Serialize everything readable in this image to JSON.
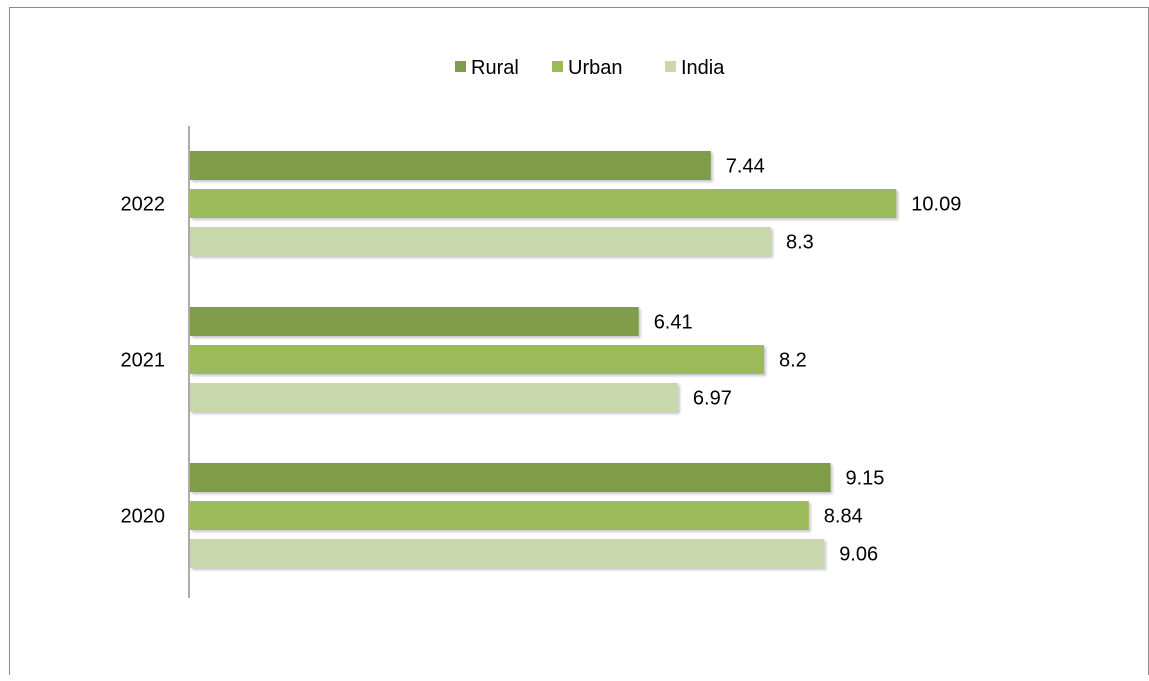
{
  "chart_data": {
    "type": "bar",
    "orientation": "horizontal",
    "categories": [
      "2022",
      "2021",
      "2020"
    ],
    "series": [
      {
        "name": "Rural",
        "color": "#7f9c4a",
        "values": [
          7.44,
          6.41,
          9.15
        ]
      },
      {
        "name": "Urban",
        "color": "#9bbb59",
        "values": [
          10.09,
          8.2,
          8.84
        ]
      },
      {
        "name": "India",
        "color": "#c9d7ad",
        "values": [
          8.3,
          6.97,
          9.06
        ]
      }
    ],
    "xlim": [
      0,
      12
    ],
    "legend_position": "top-center",
    "grid": false,
    "value_axis_visible": false
  }
}
